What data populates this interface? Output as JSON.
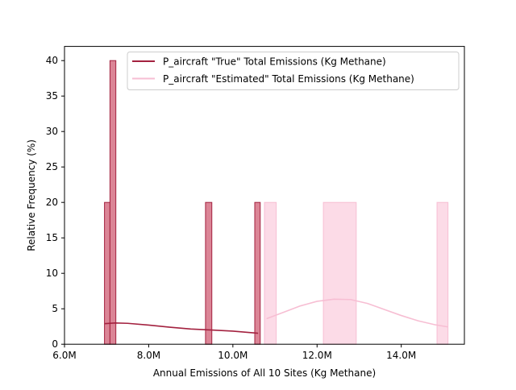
{
  "chart_data": {
    "type": "histogram",
    "title": "",
    "xlabel": "Annual Emissions of All 10 Sites (Kg Methane)",
    "ylabel": "Relative Frequency (%)",
    "xlim": [
      6000000,
      15500000
    ],
    "ylim": [
      0,
      42
    ],
    "x_ticks": [
      {
        "value": 6000000,
        "label": "6.0M"
      },
      {
        "value": 8000000,
        "label": "8.0M"
      },
      {
        "value": 10000000,
        "label": "10.0M"
      },
      {
        "value": 12000000,
        "label": "12.0M"
      },
      {
        "value": 14000000,
        "label": "14.0M"
      }
    ],
    "y_ticks": [
      0,
      5,
      10,
      15,
      20,
      25,
      30,
      35,
      40
    ],
    "grid": false,
    "legend_position": "top-right",
    "series": [
      {
        "name": "P_aircraft \"True\" Total Emissions (Kg Methane)",
        "line_color": "#a3213f",
        "fill_color": "#d7788b",
        "bins": [
          {
            "x0": 6950000,
            "x1": 7080000,
            "value": 20
          },
          {
            "x0": 7080000,
            "x1": 7220000,
            "value": 40
          },
          {
            "x0": 9350000,
            "x1": 9500000,
            "value": 20
          },
          {
            "x0": 10520000,
            "x1": 10650000,
            "value": 20
          }
        ],
        "kde": {
          "x": [
            6950000,
            7200000,
            7500000,
            8000000,
            8500000,
            9000000,
            9500000,
            10000000,
            10600000
          ],
          "y": [
            2.9,
            3.0,
            2.95,
            2.7,
            2.4,
            2.15,
            2.0,
            1.85,
            1.55
          ]
        }
      },
      {
        "name": "P_aircraft \"Estimated\" Total Emissions (Kg Methane)",
        "line_color": "#f7bed3",
        "fill_color": "#fcd7e4",
        "bins": [
          {
            "x0": 10750000,
            "x1": 11030000,
            "value": 20
          },
          {
            "x0": 12150000,
            "x1": 12930000,
            "value": 20
          },
          {
            "x0": 14850000,
            "x1": 15110000,
            "value": 20
          }
        ],
        "kde": {
          "x": [
            10800000,
            11200000,
            11600000,
            12000000,
            12400000,
            12800000,
            13200000,
            13600000,
            14000000,
            14400000,
            14800000,
            15100000
          ],
          "y": [
            3.6,
            4.5,
            5.4,
            6.05,
            6.35,
            6.3,
            5.75,
            4.9,
            4.05,
            3.3,
            2.75,
            2.45
          ]
        }
      }
    ]
  }
}
